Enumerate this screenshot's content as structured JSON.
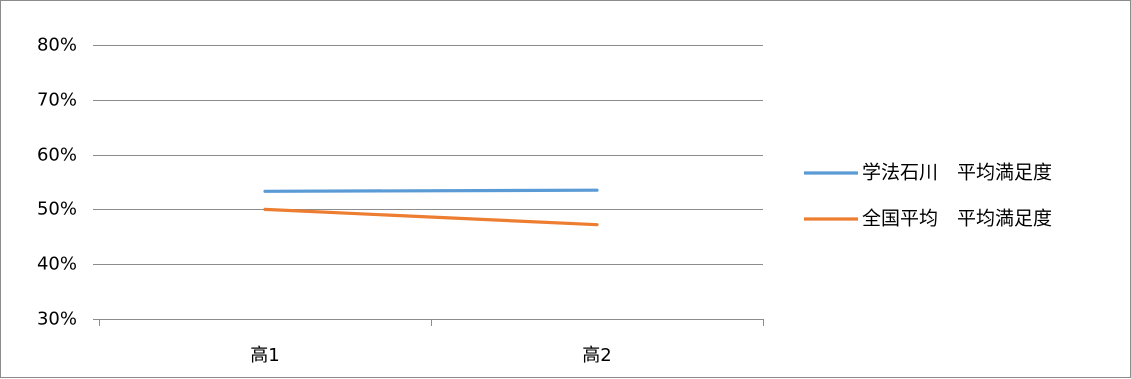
{
  "chart_data": {
    "type": "line",
    "categories": [
      "高1",
      "高2"
    ],
    "series": [
      {
        "name": "学法石川　平均満足度",
        "values": [
          53.3,
          53.5
        ],
        "color": "#5b9bd5"
      },
      {
        "name": "全国平均　平均満足度",
        "values": [
          50.0,
          47.2
        ],
        "color": "#ed7d31"
      }
    ],
    "yticks": [
      "30%",
      "40%",
      "50%",
      "60%",
      "70%",
      "80%"
    ],
    "ylim": [
      30,
      80
    ],
    "y_unit": "%",
    "grid": true,
    "legend_position": "right"
  }
}
